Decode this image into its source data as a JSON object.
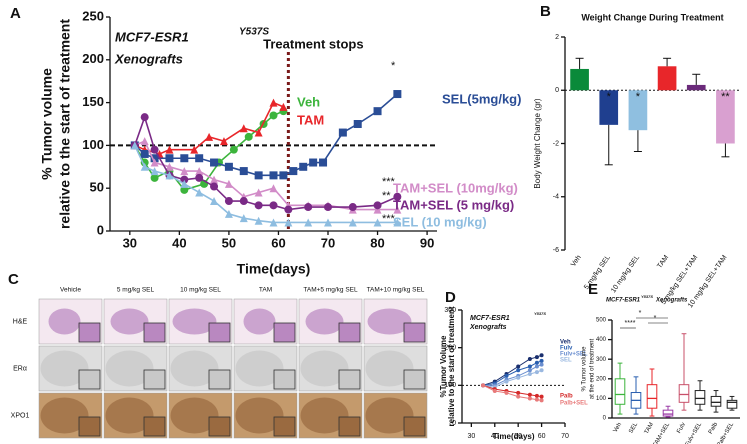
{
  "chart_data": [
    {
      "panel": "A",
      "type": "line",
      "annotations": [
        "MCF7-ESR1",
        "Y537S",
        "Xenografts"
      ],
      "xlabel": "Time(days)",
      "ylabel": [
        "% Tumor volume",
        "relative to the start of treatment"
      ],
      "xlim": [
        26,
        92
      ],
      "xticks": [
        30,
        40,
        50,
        60,
        70,
        80,
        90
      ],
      "ylim": [
        0,
        250
      ],
      "yticks": [
        0,
        50,
        100,
        150,
        200,
        250
      ],
      "hline": 100,
      "vline": {
        "value": 62,
        "label": "Treatment stops"
      },
      "significance": [
        "*",
        "***",
        "**",
        "***"
      ],
      "series": [
        {
          "name": "Veh",
          "color": "#3cb43c",
          "marker": "circle",
          "x": [
            31,
            33,
            35,
            38,
            41,
            45,
            48,
            51,
            54,
            57,
            59,
            61
          ],
          "values": [
            100,
            80,
            62,
            70,
            48,
            55,
            80,
            95,
            110,
            125,
            135,
            140
          ]
        },
        {
          "name": "TAM",
          "color": "#e8262a",
          "marker": "triangle",
          "x": [
            31,
            33,
            36,
            38,
            43,
            46,
            49,
            53,
            56,
            59,
            61
          ],
          "values": [
            100,
            95,
            90,
            95,
            95,
            110,
            105,
            120,
            115,
            150,
            145
          ]
        },
        {
          "name": "SEL(5mg/kg)",
          "color": "#2a4d96",
          "marker": "square",
          "x": [
            31,
            33,
            35,
            38,
            41,
            44,
            47,
            50,
            53,
            56,
            59,
            61,
            63,
            65,
            67,
            69,
            73,
            76,
            80,
            84
          ],
          "values": [
            100,
            90,
            85,
            85,
            85,
            85,
            80,
            75,
            70,
            65,
            65,
            65,
            70,
            75,
            80,
            80,
            115,
            125,
            140,
            160
          ]
        },
        {
          "name": "TAM+SEL (10mg/kg)",
          "color": "#d28cc8",
          "marker": "triangle",
          "x": [
            31,
            33,
            35,
            38,
            41,
            44,
            47,
            50,
            53,
            56,
            59,
            62,
            66,
            70,
            75,
            80,
            84
          ],
          "values": [
            100,
            105,
            80,
            75,
            70,
            70,
            60,
            55,
            40,
            45,
            50,
            30,
            30,
            30,
            25,
            25,
            25
          ]
        },
        {
          "name": "TAM+SEL (5 mg/kg)",
          "color": "#7a2a86",
          "marker": "circle",
          "x": [
            31,
            33,
            35,
            38,
            41,
            44,
            47,
            50,
            53,
            56,
            59,
            62,
            66,
            70,
            75,
            80,
            84
          ],
          "values": [
            100,
            133,
            95,
            65,
            60,
            62,
            52,
            35,
            35,
            30,
            30,
            25,
            28,
            28,
            28,
            30,
            40
          ]
        },
        {
          "name": "SEL (10 mg/kg)",
          "color": "#8ebde0",
          "marker": "triangle",
          "x": [
            31,
            33,
            35,
            38,
            41,
            44,
            47,
            50,
            53,
            56,
            59,
            62,
            66,
            70,
            75,
            80,
            84
          ],
          "values": [
            100,
            75,
            70,
            65,
            55,
            45,
            35,
            20,
            15,
            12,
            10,
            10,
            10,
            10,
            10,
            10,
            10
          ]
        }
      ]
    },
    {
      "panel": "B",
      "type": "bar",
      "title": "Weight Change During Treatment",
      "ylabel": "Body  Weight Change (gr)",
      "categories": [
        "Veh",
        "5 mg/kg SEL",
        "10 mg/kg SEL",
        "TAM",
        "5 mg/kg SEL+TAM",
        "10 mg/kg SEL+TAM"
      ],
      "values": [
        0.8,
        -1.3,
        -1.5,
        0.9,
        0.2,
        -2.0
      ],
      "errors": [
        0.4,
        1.5,
        0.8,
        0.3,
        0.4,
        0.5
      ],
      "colors": [
        "#0a8a3a",
        "#1f3f8f",
        "#8fbfe0",
        "#e8262a",
        "#6a2a7a",
        "#d9a0d0"
      ],
      "ylim": [
        -6,
        2
      ],
      "yticks": [
        -6,
        -4,
        -2,
        0,
        2
      ],
      "hline": 0,
      "significance": [
        {
          "index": 1,
          "label": "*"
        },
        {
          "index": 2,
          "label": "*"
        },
        {
          "index": 5,
          "label": "**"
        }
      ]
    },
    {
      "panel": "D",
      "type": "line",
      "annotations": [
        "MCF7-ESR1",
        "Y537S",
        "Xenografts"
      ],
      "xlabel": "Time(days)",
      "ylabel": [
        "%Tumor Volume",
        "relative to the start of treatment"
      ],
      "xlim": [
        26,
        70
      ],
      "xticks": [
        30,
        40,
        50,
        60,
        70
      ],
      "ylim": [
        0,
        300
      ],
      "yticks": [
        0,
        100,
        200,
        300
      ],
      "hline": 100,
      "series": [
        {
          "name": "Veh",
          "color": "#1a2f6e",
          "marker": "circle",
          "x": [
            35,
            40,
            45,
            50,
            55,
            58,
            60
          ],
          "values": [
            100,
            110,
            130,
            150,
            170,
            175,
            180
          ]
        },
        {
          "name": "Fulv",
          "color": "#2a5fb0",
          "marker": "circle",
          "x": [
            35,
            40,
            45,
            50,
            55,
            58,
            60
          ],
          "values": [
            100,
            105,
            125,
            140,
            150,
            160,
            165
          ]
        },
        {
          "name": "Fulv+SEL",
          "color": "#6b8fd0",
          "marker": "circle",
          "x": [
            35,
            40,
            45,
            50,
            55,
            58,
            60
          ],
          "values": [
            100,
            100,
            115,
            125,
            140,
            150,
            155
          ]
        },
        {
          "name": "SEL",
          "color": "#9ab8e0",
          "marker": "circle",
          "x": [
            35,
            40,
            45,
            50,
            55,
            58,
            60
          ],
          "values": [
            100,
            95,
            110,
            120,
            130,
            135,
            140
          ]
        },
        {
          "name": "Palb",
          "color": "#d42a2a",
          "marker": "circle",
          "x": [
            35,
            40,
            45,
            50,
            55,
            58,
            60
          ],
          "values": [
            100,
            90,
            85,
            80,
            75,
            72,
            70
          ]
        },
        {
          "name": "Palb+SEL",
          "color": "#e87a7a",
          "marker": "circle",
          "x": [
            35,
            40,
            45,
            50,
            55,
            58,
            60
          ],
          "values": [
            100,
            85,
            80,
            70,
            65,
            62,
            60
          ]
        }
      ]
    },
    {
      "panel": "E",
      "type": "box",
      "title": [
        "MCF7-ESR1",
        "Y537S",
        "Xenografts"
      ],
      "ylabel": [
        "% Tumor volume",
        "at the end of treatment"
      ],
      "categories": [
        "Veh",
        "SEL",
        "TAM",
        "TAM+SEL",
        "Fulv",
        "Fulv+SEL",
        "Palb",
        "Palb+SEL"
      ],
      "values": [
        [
          20,
          70,
          120,
          200,
          280
        ],
        [
          20,
          50,
          90,
          130,
          210
        ],
        [
          10,
          50,
          100,
          170,
          250
        ],
        [
          5,
          10,
          20,
          40,
          60
        ],
        [
          40,
          80,
          120,
          170,
          430
        ],
        [
          40,
          70,
          100,
          140,
          190
        ],
        [
          30,
          60,
          80,
          110,
          140
        ],
        [
          40,
          50,
          80,
          90,
          110
        ]
      ],
      "colors": [
        "#3cb43c",
        "#2a5fb0",
        "#e8262a",
        "#9a3aa6",
        "#c8506a",
        "#222222",
        "#222222",
        "#222222"
      ],
      "ylim": [
        0,
        500
      ],
      "yticks": [
        0,
        100,
        200,
        300,
        400,
        500
      ],
      "significance": [
        "****",
        "*",
        "*"
      ]
    }
  ],
  "panel_c": {
    "label": "C",
    "columns": [
      "Vehicle",
      "5 mg/kg SEL",
      "10 mg/kg SEL",
      "TAM",
      "TAM+5 mg/kg SEL",
      "TAM+10 mg/kg SEL"
    ],
    "rows": [
      "H&E",
      "ERα",
      "XPO1"
    ]
  }
}
